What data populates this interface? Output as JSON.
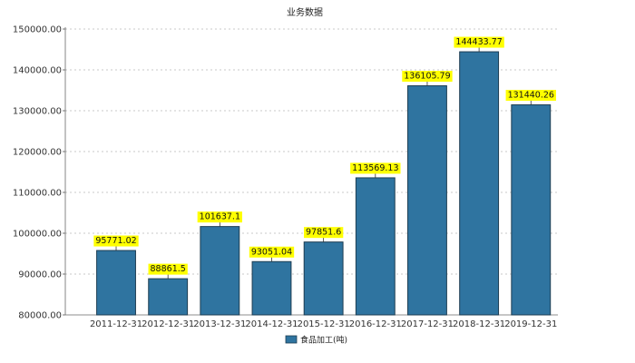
{
  "chart_data": {
    "type": "bar",
    "title": "业务数据",
    "categories": [
      "2011-12-31",
      "2012-12-31",
      "2013-12-31",
      "2014-12-31",
      "2015-12-31",
      "2016-12-31",
      "2017-12-31",
      "2018-12-31",
      "2019-12-31"
    ],
    "series": [
      {
        "name": "食品加工(吨)",
        "values": [
          95771.02,
          88861.5,
          101637.1,
          93051.04,
          97851.6,
          113569.13,
          136105.79,
          144433.77,
          131440.26
        ],
        "labels": [
          "95771.02",
          "88861.5",
          "101637.1",
          "93051.04",
          "97851.6",
          "113569.13",
          "136105.79",
          "144433.77",
          "131440.26"
        ]
      }
    ],
    "ylim": [
      80000,
      150000
    ],
    "yticks": [
      80000,
      90000,
      100000,
      110000,
      120000,
      130000,
      140000,
      150000
    ],
    "ytick_labels": [
      "80000.00",
      "90000.00",
      "100000.00",
      "110000.00",
      "120000.00",
      "130000.00",
      "140000.00",
      "150000.00"
    ],
    "grid": true,
    "legend_position": "bottom-center",
    "colors": {
      "bar_fill": "#2f74a0",
      "bar_stroke": "#1d3d52",
      "label_bg": "#ffff00",
      "grid": "#b8b8b8"
    }
  }
}
